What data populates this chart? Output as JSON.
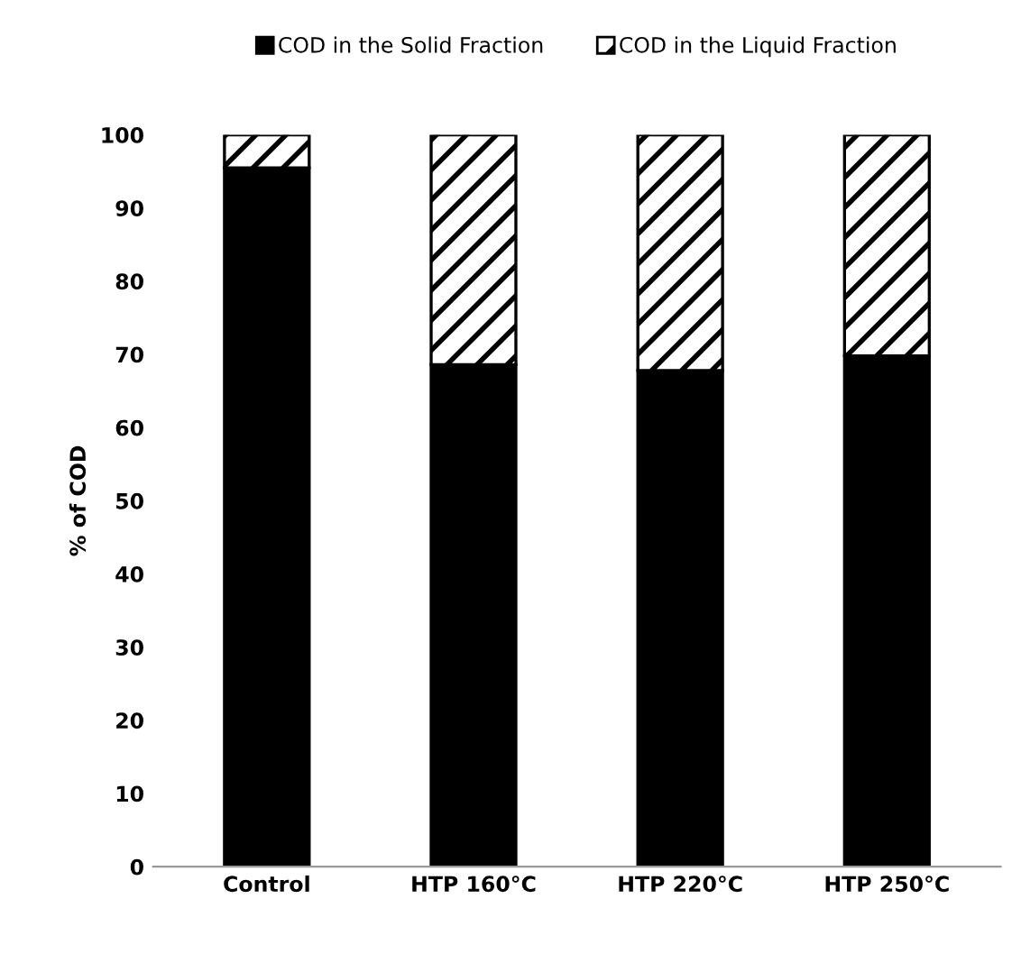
{
  "chart_data": {
    "type": "bar",
    "stacked": true,
    "ylabel": "% of COD",
    "categories": [
      "Control",
      "HTP 160°C",
      "HTP 220°C",
      "HTP 250°C"
    ],
    "series": [
      {
        "name": "COD in the Solid Fraction",
        "color": "#000000",
        "values": [
          95.5,
          68.6,
          67.8,
          69.8
        ]
      },
      {
        "name": "COD in the Liquid Fraction",
        "color": "#000000",
        "values": [
          4.5,
          31.4,
          32.2,
          30.2
        ]
      }
    ],
    "ylim": [
      0,
      100
    ],
    "yticks": [
      0,
      10,
      20,
      30,
      40,
      50,
      60,
      70,
      80,
      90,
      100
    ],
    "grid": false,
    "legend": "top"
  }
}
